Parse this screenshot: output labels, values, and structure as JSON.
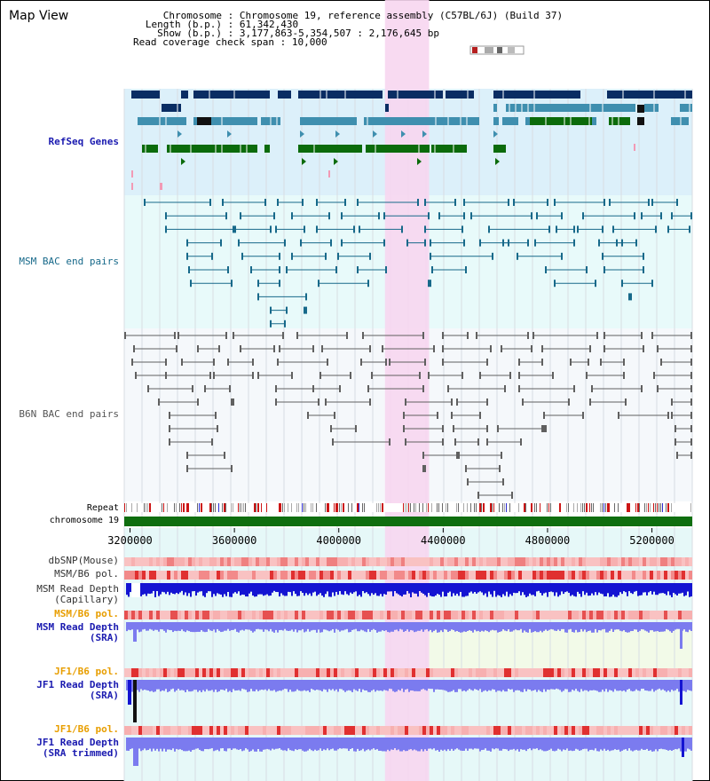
{
  "header": {
    "title": "Map View",
    "rows": [
      {
        "label": "Chromosome",
        "value": "Chromosome 19, reference assembly (C57BL/6J) (Build 37)"
      },
      {
        "label": "Length (b.p.)",
        "value": "61,342,430"
      },
      {
        "label": "Show (b.p.)",
        "value": "3,177,863-5,354,507 : 2,176,645 bp"
      },
      {
        "label": "Read coverage check span",
        "value": "10,000"
      }
    ]
  },
  "tracks": {
    "refseq": "RefSeq Genes",
    "msm_bac": "MSM BAC end pairs",
    "b6n_bac": "B6N BAC end pairs",
    "repeat": "Repeat",
    "chromosome": "chromosome 19",
    "dbsnp": "dbSNP(Mouse)",
    "msm_b6_pol_1": "MSM/B6 pol.",
    "msm_depth_cap_1": "MSM Read Depth",
    "msm_depth_cap_2": "(Capillary)",
    "msm_b6_pol_2": "MSM/B6 pol.",
    "msm_depth_sra_1": "MSM Read Depth",
    "msm_depth_sra_2": "(SRA)",
    "jf1_b6_pol_1": "JF1/B6 pol.",
    "jf1_depth_sra_1": "JF1 Read Depth",
    "jf1_depth_sra_2": "(SRA)",
    "jf1_b6_pol_2": "JF1/B6 pol.",
    "jf1_depth_trim_1": "JF1 Read Depth",
    "jf1_depth_trim_2": "(SRA trimmed)"
  },
  "axis": {
    "start_bp": 3177863,
    "end_bp": 5354507,
    "ticks": [
      3200000,
      3600000,
      4000000,
      4400000,
      4800000,
      5200000
    ],
    "tick_labels": [
      "3200000",
      "3600000",
      "4000000",
      "4400000",
      "4800000",
      "5200000"
    ]
  },
  "highlight_bp": [
    4177000,
    4346000
  ],
  "colors": {
    "refseq_bg": "#dcf0fa",
    "bac_bg": "#e8fafa",
    "b6n_bg": "#f5f8fb",
    "highlight": "#f7d6f0",
    "gene_dark": "#0a2d63",
    "gene_mid": "#3f8faf",
    "gene_green": "#0b6b0b",
    "gene_pink": "#f29ab5",
    "msm_bac": "#17698a",
    "b6n_bac": "#606060",
    "chrom_green": "#0f6e0f",
    "depth_blue": "#1414d2",
    "depth_light": "#7b7bef",
    "msm_label": "#1a1ab0",
    "pol_orange": "#e89e00",
    "gray_label": "#333333"
  }
}
